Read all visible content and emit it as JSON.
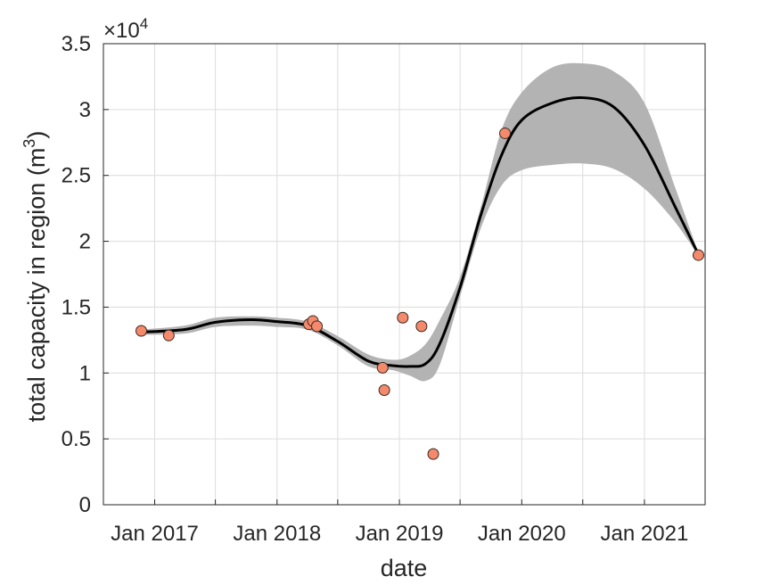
{
  "chart_data": {
    "type": "scatter",
    "title": "",
    "xlabel": "date",
    "ylabel_main": "total capacity in region (m",
    "ylabel_sup": "3",
    "ylabel_close": ")",
    "y_exponent_label": "×10",
    "y_exponent_sup": "4",
    "x_axis": "date",
    "xlim": [
      "2016-08-01",
      "2021-07-01"
    ],
    "ylim": [
      0,
      35000
    ],
    "x_ticks": [
      {
        "date": "2017-01-01",
        "label": "Jan 2017"
      },
      {
        "date": "2017-07-01",
        "label": ""
      },
      {
        "date": "2018-01-01",
        "label": "Jan 2018"
      },
      {
        "date": "2018-07-01",
        "label": ""
      },
      {
        "date": "2019-01-01",
        "label": "Jan 2019"
      },
      {
        "date": "2019-07-01",
        "label": ""
      },
      {
        "date": "2020-01-01",
        "label": "Jan 2020"
      },
      {
        "date": "2020-07-01",
        "label": ""
      },
      {
        "date": "2021-01-01",
        "label": "Jan 2021"
      },
      {
        "date": "2021-07-01",
        "label": ""
      }
    ],
    "y_ticks": [
      {
        "value": 0,
        "label": "0"
      },
      {
        "value": 5000,
        "label": "0.5"
      },
      {
        "value": 10000,
        "label": "1"
      },
      {
        "value": 15000,
        "label": "1.5"
      },
      {
        "value": 20000,
        "label": "2"
      },
      {
        "value": 25000,
        "label": "2.5"
      },
      {
        "value": 30000,
        "label": "3"
      },
      {
        "value": 35000,
        "label": "3.5"
      }
    ],
    "grid": true,
    "series": [
      {
        "kind": "scatter",
        "color": "#F4896B",
        "points": [
          {
            "x": "2016-11-22",
            "y": 13200
          },
          {
            "x": "2017-02-12",
            "y": 12850
          },
          {
            "x": "2018-04-06",
            "y": 13700
          },
          {
            "x": "2018-04-18",
            "y": 13950
          },
          {
            "x": "2018-04-30",
            "y": 13550
          },
          {
            "x": "2018-11-12",
            "y": 10400
          },
          {
            "x": "2018-11-17",
            "y": 8700
          },
          {
            "x": "2019-01-11",
            "y": 14200
          },
          {
            "x": "2019-03-08",
            "y": 13550
          },
          {
            "x": "2019-04-12",
            "y": 3850
          },
          {
            "x": "2019-11-12",
            "y": 28200
          },
          {
            "x": "2021-06-11",
            "y": 18950
          }
        ]
      },
      {
        "kind": "line",
        "color": "#000000",
        "points": [
          {
            "x": "2016-11-22",
            "y": 13100
          },
          {
            "x": "2017-04-01",
            "y": 13300
          },
          {
            "x": "2017-07-01",
            "y": 13850
          },
          {
            "x": "2017-10-15",
            "y": 14050
          },
          {
            "x": "2018-01-01",
            "y": 13900
          },
          {
            "x": "2018-04-01",
            "y": 13600
          },
          {
            "x": "2018-07-01",
            "y": 12400
          },
          {
            "x": "2018-10-01",
            "y": 10900
          },
          {
            "x": "2018-12-15",
            "y": 10550
          },
          {
            "x": "2019-02-01",
            "y": 10500
          },
          {
            "x": "2019-03-20",
            "y": 10700
          },
          {
            "x": "2019-05-01",
            "y": 12200
          },
          {
            "x": "2019-07-01",
            "y": 16500
          },
          {
            "x": "2019-09-01",
            "y": 22000
          },
          {
            "x": "2019-11-01",
            "y": 26500
          },
          {
            "x": "2020-01-01",
            "y": 29200
          },
          {
            "x": "2020-04-01",
            "y": 30500
          },
          {
            "x": "2020-07-01",
            "y": 30900
          },
          {
            "x": "2020-10-01",
            "y": 30200
          },
          {
            "x": "2021-01-01",
            "y": 27300
          },
          {
            "x": "2021-04-01",
            "y": 22700
          },
          {
            "x": "2021-06-11",
            "y": 19000
          }
        ]
      },
      {
        "kind": "band",
        "color": "#b3b3b3",
        "points": [
          {
            "x": "2016-11-22",
            "lower": 12900,
            "upper": 13300
          },
          {
            "x": "2017-04-01",
            "lower": 13000,
            "upper": 13600
          },
          {
            "x": "2017-07-01",
            "lower": 13500,
            "upper": 14200
          },
          {
            "x": "2017-10-15",
            "lower": 13600,
            "upper": 14300
          },
          {
            "x": "2018-01-01",
            "lower": 13500,
            "upper": 14200
          },
          {
            "x": "2018-04-01",
            "lower": 13300,
            "upper": 13900
          },
          {
            "x": "2018-07-01",
            "lower": 12100,
            "upper": 12800
          },
          {
            "x": "2018-10-01",
            "lower": 10500,
            "upper": 11400
          },
          {
            "x": "2018-12-15",
            "lower": 10200,
            "upper": 11000
          },
          {
            "x": "2019-02-01",
            "lower": 9800,
            "upper": 11300
          },
          {
            "x": "2019-03-20",
            "lower": 9400,
            "upper": 12200
          },
          {
            "x": "2019-05-01",
            "lower": 10600,
            "upper": 14000
          },
          {
            "x": "2019-07-01",
            "lower": 15800,
            "upper": 17300
          },
          {
            "x": "2019-09-01",
            "lower": 21000,
            "upper": 22600
          },
          {
            "x": "2019-11-01",
            "lower": 24200,
            "upper": 28400
          },
          {
            "x": "2020-01-01",
            "lower": 25400,
            "upper": 31300
          },
          {
            "x": "2020-04-01",
            "lower": 25800,
            "upper": 33200
          },
          {
            "x": "2020-07-01",
            "lower": 25900,
            "upper": 33500
          },
          {
            "x": "2020-10-01",
            "lower": 25500,
            "upper": 32900
          },
          {
            "x": "2021-01-01",
            "lower": 24000,
            "upper": 30500
          },
          {
            "x": "2021-04-01",
            "lower": 21500,
            "upper": 24200
          },
          {
            "x": "2021-06-11",
            "lower": 18900,
            "upper": 19100
          }
        ]
      }
    ]
  }
}
